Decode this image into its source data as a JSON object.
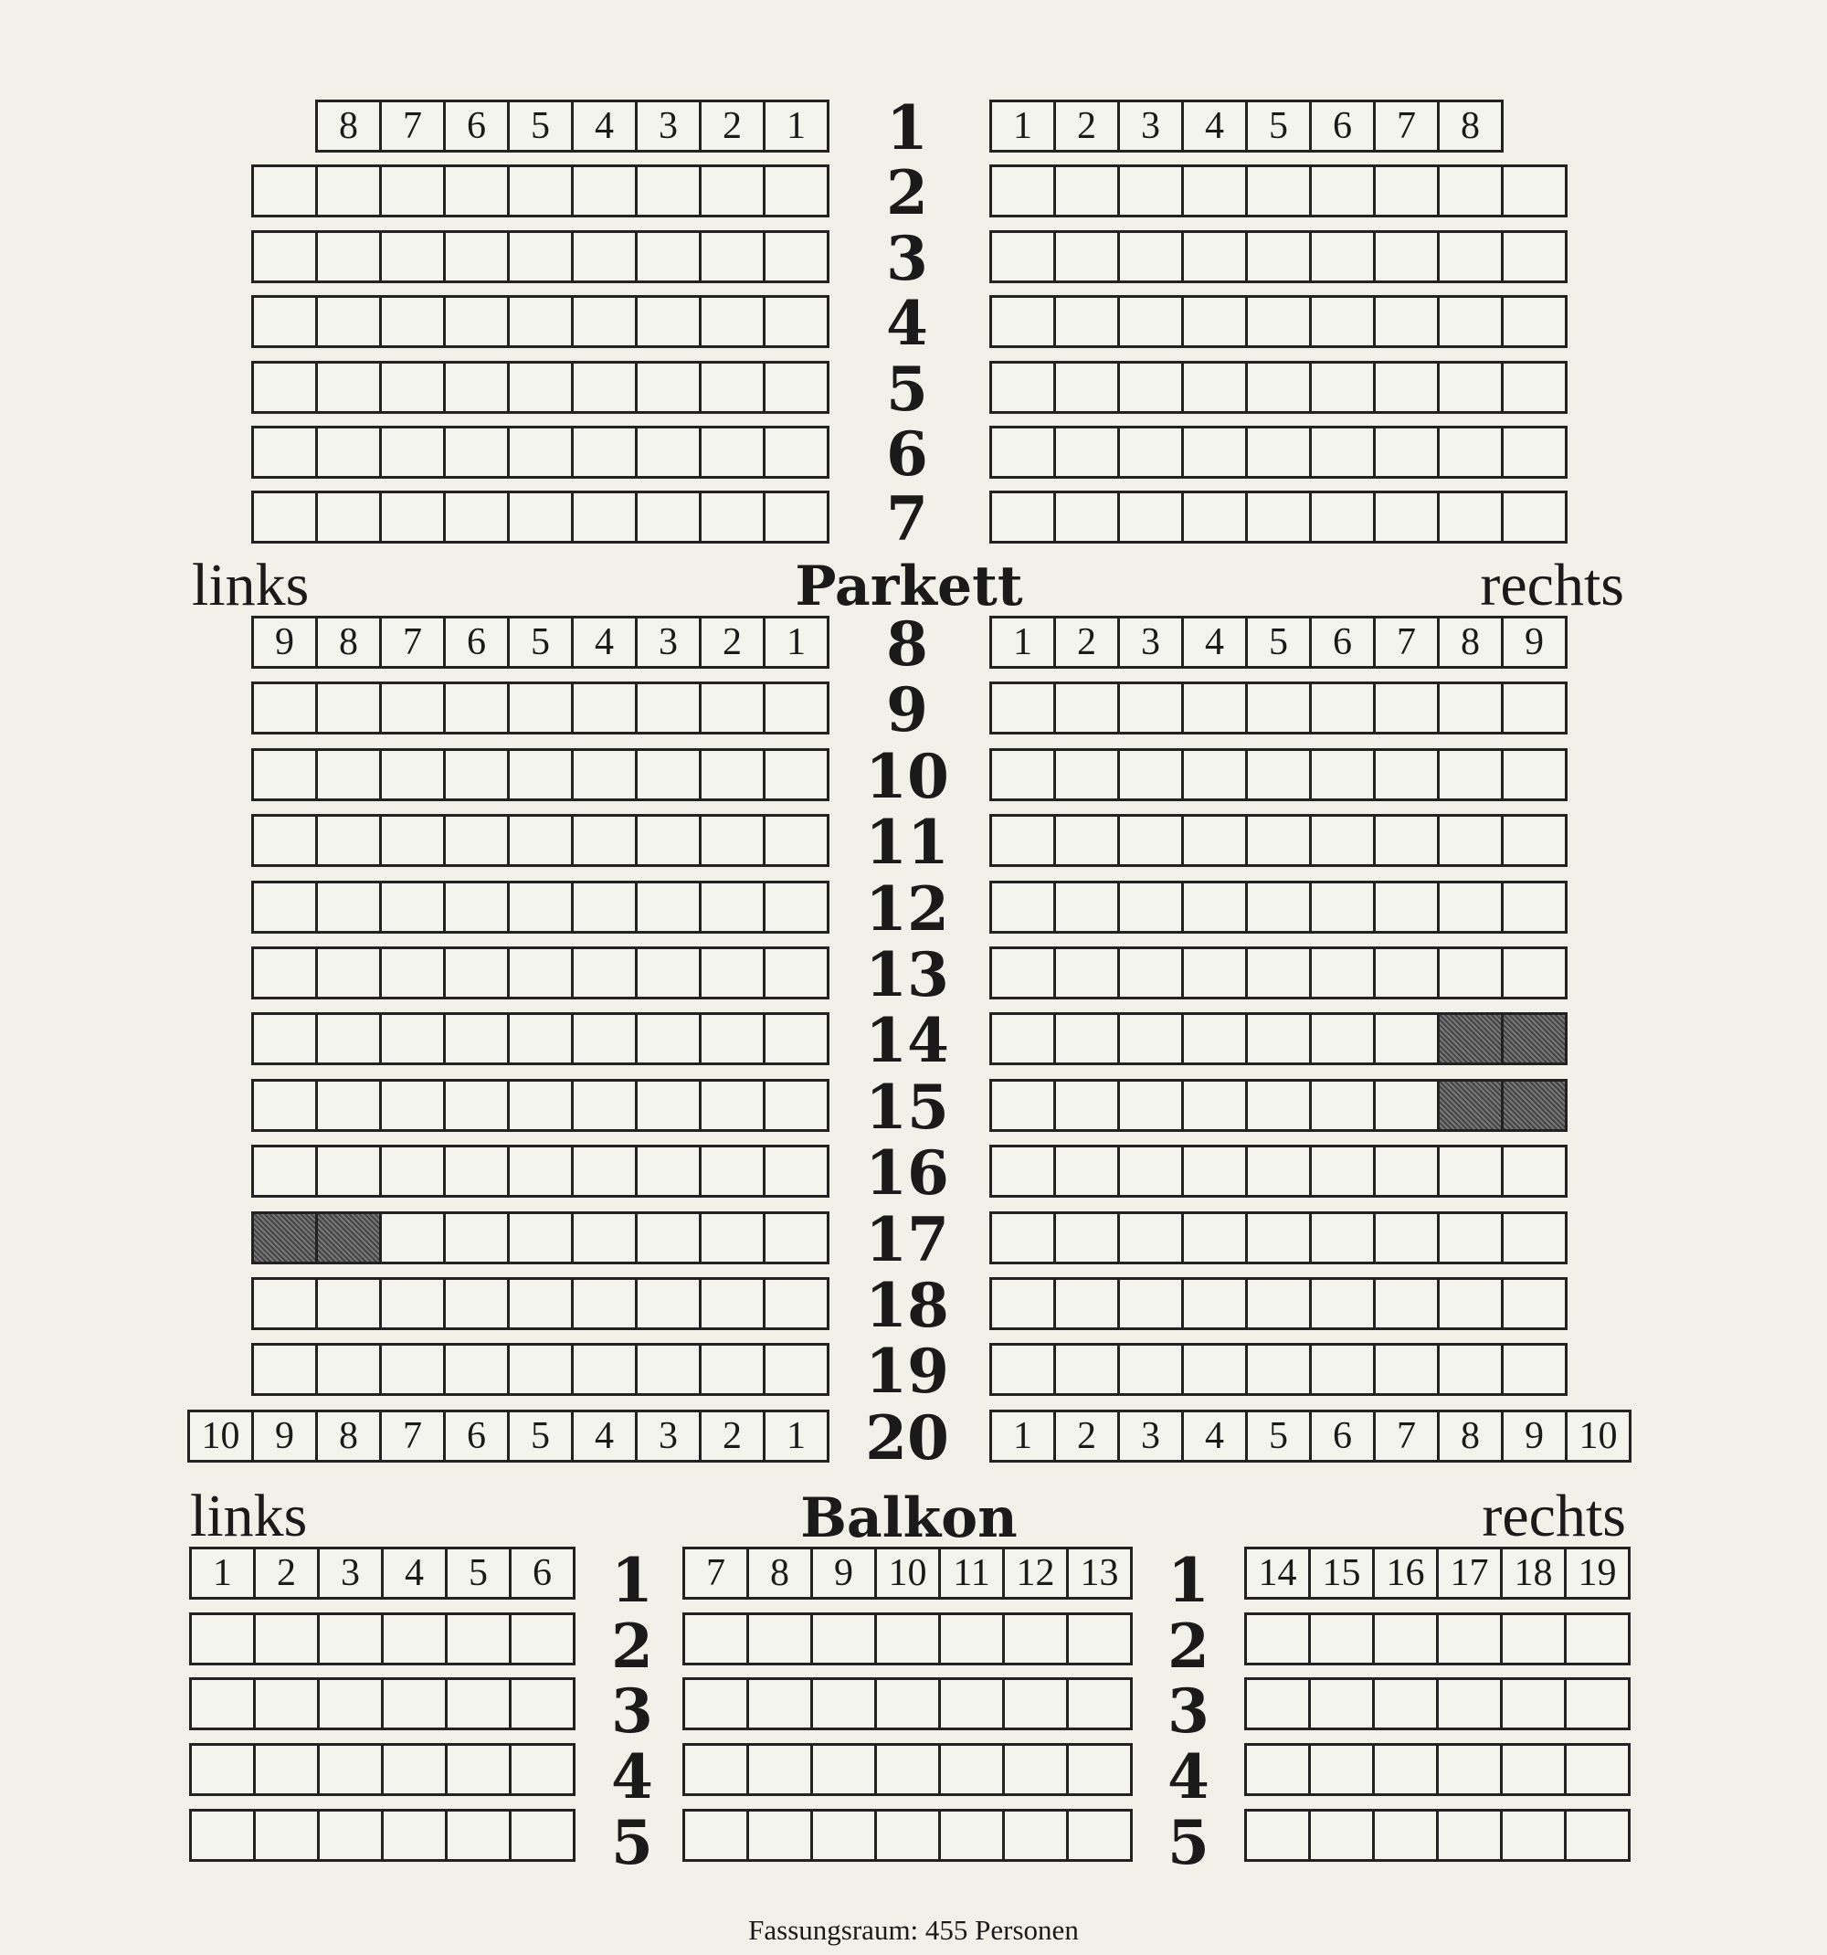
{
  "parkett": {
    "title": "Parkett",
    "left_label": "links",
    "right_label": "rechts",
    "rows": [
      {
        "row": "1",
        "left_seats": 8,
        "right_seats": 8,
        "numbered": true
      },
      {
        "row": "2",
        "left_seats": 9,
        "right_seats": 9
      },
      {
        "row": "3",
        "left_seats": 9,
        "right_seats": 9
      },
      {
        "row": "4",
        "left_seats": 9,
        "right_seats": 9
      },
      {
        "row": "5",
        "left_seats": 9,
        "right_seats": 9
      },
      {
        "row": "6",
        "left_seats": 9,
        "right_seats": 9
      },
      {
        "row": "7",
        "left_seats": 9,
        "right_seats": 9
      },
      {
        "row": "8",
        "left_seats": 9,
        "right_seats": 9,
        "numbered": true
      },
      {
        "row": "9",
        "left_seats": 9,
        "right_seats": 9
      },
      {
        "row": "10",
        "left_seats": 9,
        "right_seats": 9
      },
      {
        "row": "11",
        "left_seats": 9,
        "right_seats": 9
      },
      {
        "row": "12",
        "left_seats": 9,
        "right_seats": 9
      },
      {
        "row": "13",
        "left_seats": 9,
        "right_seats": 9
      },
      {
        "row": "14",
        "left_seats": 9,
        "right_seats": 9,
        "occupied_right": [
          8,
          9
        ]
      },
      {
        "row": "15",
        "left_seats": 9,
        "right_seats": 9,
        "occupied_right": [
          8,
          9
        ]
      },
      {
        "row": "16",
        "left_seats": 9,
        "right_seats": 9
      },
      {
        "row": "17",
        "left_seats": 9,
        "right_seats": 9,
        "occupied_left": [
          9,
          8
        ]
      },
      {
        "row": "18",
        "left_seats": 9,
        "right_seats": 9
      },
      {
        "row": "19",
        "left_seats": 9,
        "right_seats": 9
      },
      {
        "row": "20",
        "left_seats": 10,
        "right_seats": 10,
        "numbered": true
      }
    ]
  },
  "balkon": {
    "title": "Balkon",
    "left_label": "links",
    "right_label": "rechts",
    "blocks": [
      {
        "name": "left",
        "seat_numbers": [
          "1",
          "2",
          "3",
          "4",
          "5",
          "6"
        ]
      },
      {
        "name": "center",
        "seat_numbers": [
          "7",
          "8",
          "9",
          "10",
          "11",
          "12",
          "13"
        ]
      },
      {
        "name": "right",
        "seat_numbers": [
          "14",
          "15",
          "16",
          "17",
          "18",
          "19"
        ]
      }
    ],
    "rows": [
      "1",
      "2",
      "3",
      "4",
      "5"
    ]
  },
  "occupied_color": "#555555",
  "footer": "Fassungsraum: 455 Personen"
}
